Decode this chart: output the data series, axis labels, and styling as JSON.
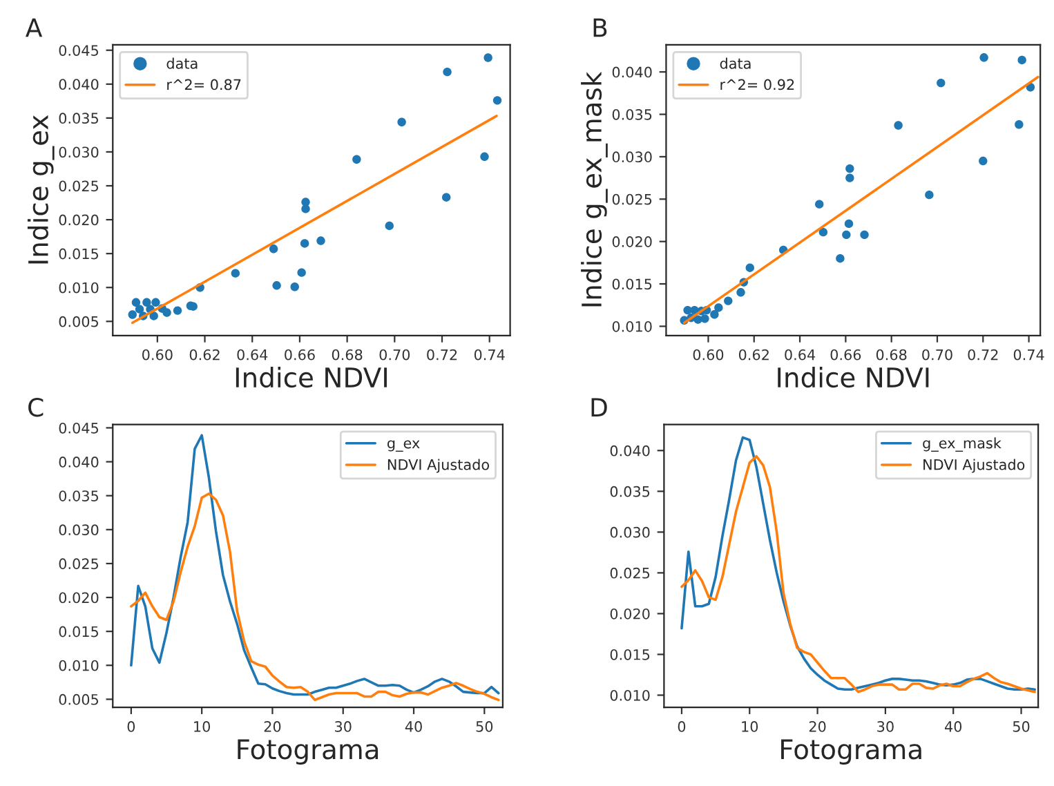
{
  "chart_data": [
    {
      "type": "scatter",
      "title": "A",
      "xlabel": "Indice NDVI",
      "ylabel": "Indice g_ex",
      "legend": "top left",
      "grid": false,
      "xlim": [
        0.5812,
        0.7487
      ],
      "ylim": [
        0.0029,
        0.0458
      ],
      "xticks": [
        {
          "value": 0.6,
          "label": "0.60"
        },
        {
          "value": 0.62,
          "label": "0.62"
        },
        {
          "value": 0.64,
          "label": "0.64"
        },
        {
          "value": 0.66,
          "label": "0.66"
        },
        {
          "value": 0.68,
          "label": "0.68"
        },
        {
          "value": 0.7,
          "label": "0.70"
        },
        {
          "value": 0.72,
          "label": "0.72"
        },
        {
          "value": 0.74,
          "label": "0.74"
        }
      ],
      "yticks": [
        {
          "value": 0.005,
          "label": "0.005"
        },
        {
          "value": 0.01,
          "label": "0.010"
        },
        {
          "value": 0.015,
          "label": "0.015"
        },
        {
          "value": 0.02,
          "label": "0.020"
        },
        {
          "value": 0.025,
          "label": "0.025"
        },
        {
          "value": 0.03,
          "label": "0.030"
        },
        {
          "value": 0.035,
          "label": "0.035"
        },
        {
          "value": 0.04,
          "label": "0.040"
        },
        {
          "value": 0.045,
          "label": "0.045"
        }
      ],
      "series": [
        {
          "name": "data",
          "type": "scatter",
          "color": "#1f77b4",
          "marker": "circle",
          "x": [
            0.7394,
            0.7222,
            0.7433,
            0.703,
            0.684,
            0.7379,
            0.7218,
            0.6625,
            0.6625,
            0.6978,
            0.6689,
            0.6621,
            0.649,
            0.6608,
            0.6329,
            0.6503,
            0.6579,
            0.618,
            0.614,
            0.6151,
            0.6085,
            0.604,
            0.602,
            0.5895,
            0.591,
            0.5925,
            0.594,
            0.5955,
            0.597,
            0.5985,
            0.5993
          ],
          "values": [
            0.0439,
            0.0418,
            0.0376,
            0.0344,
            0.0289,
            0.0293,
            0.0233,
            0.0226,
            0.0216,
            0.0191,
            0.0169,
            0.0165,
            0.0157,
            0.0122,
            0.0121,
            0.0103,
            0.0101,
            0.01,
            0.0073,
            0.0072,
            0.0066,
            0.0063,
            0.0069,
            0.006,
            0.0078,
            0.0068,
            0.0058,
            0.0078,
            0.0068,
            0.0058,
            0.0078
          ]
        },
        {
          "name": "r^2= 0.87",
          "type": "line",
          "color": "#ff7f0e",
          "marker": "none",
          "x": [
            0.5895,
            0.743
          ],
          "values": [
            0.0048,
            0.0353
          ]
        }
      ]
    },
    {
      "type": "scatter",
      "title": "B",
      "xlabel": "Indice NDVI",
      "ylabel": "Indice g_ex_mask",
      "legend": "top left",
      "grid": false,
      "xlim": [
        0.5816,
        0.745
      ],
      "ylim": [
        0.0089,
        0.0432
      ],
      "xticks": [
        {
          "value": 0.6,
          "label": "0.60"
        },
        {
          "value": 0.62,
          "label": "0.62"
        },
        {
          "value": 0.64,
          "label": "0.64"
        },
        {
          "value": 0.66,
          "label": "0.66"
        },
        {
          "value": 0.68,
          "label": "0.68"
        },
        {
          "value": 0.7,
          "label": "0.70"
        },
        {
          "value": 0.72,
          "label": "0.72"
        },
        {
          "value": 0.74,
          "label": "0.74"
        }
      ],
      "yticks": [
        {
          "value": 0.01,
          "label": "0.010"
        },
        {
          "value": 0.015,
          "label": "0.015"
        },
        {
          "value": 0.02,
          "label": "0.020"
        },
        {
          "value": 0.025,
          "label": "0.025"
        },
        {
          "value": 0.03,
          "label": "0.030"
        },
        {
          "value": 0.035,
          "label": "0.035"
        },
        {
          "value": 0.04,
          "label": "0.040"
        }
      ],
      "series": [
        {
          "name": "data",
          "type": "scatter",
          "color": "#1f77b4",
          "marker": "circle",
          "x": [
            0.7204,
            0.737,
            0.7407,
            0.7016,
            0.683,
            0.7357,
            0.72,
            0.6965,
            0.6618,
            0.6618,
            0.6485,
            0.6502,
            0.6614,
            0.6603,
            0.6682,
            0.6576,
            0.6328,
            0.6182,
            0.6155,
            0.6142,
            0.6087,
            0.6045,
            0.6027,
            0.5895,
            0.591,
            0.5925,
            0.594,
            0.5955,
            0.597,
            0.5985,
            0.5993
          ],
          "values": [
            0.0417,
            0.0414,
            0.0382,
            0.0387,
            0.0337,
            0.0338,
            0.0295,
            0.0255,
            0.0286,
            0.0275,
            0.0244,
            0.0211,
            0.0221,
            0.0208,
            0.0208,
            0.018,
            0.019,
            0.0169,
            0.0152,
            0.014,
            0.013,
            0.0122,
            0.0114,
            0.0107,
            0.0119,
            0.011,
            0.0119,
            0.0108,
            0.0118,
            0.0109,
            0.0119
          ]
        },
        {
          "name": "r^2= 0.92",
          "type": "line",
          "color": "#ff7f0e",
          "marker": "none",
          "x": [
            0.5895,
            0.744
          ],
          "values": [
            0.0104,
            0.0394
          ]
        }
      ]
    },
    {
      "type": "line",
      "title": "C",
      "xlabel": "Fotograma",
      "legend": "top right",
      "grid": false,
      "xlim": [
        -2.6,
        52.6
      ],
      "ylim": [
        0.0038,
        0.0455
      ],
      "xticks": [
        0,
        10,
        20,
        30,
        40,
        50
      ],
      "yticks": [
        {
          "value": 0.005,
          "label": "0.005"
        },
        {
          "value": 0.01,
          "label": "0.010"
        },
        {
          "value": 0.015,
          "label": "0.015"
        },
        {
          "value": 0.02,
          "label": "0.020"
        },
        {
          "value": 0.025,
          "label": "0.025"
        },
        {
          "value": 0.03,
          "label": "0.030"
        },
        {
          "value": 0.035,
          "label": "0.035"
        },
        {
          "value": 0.04,
          "label": "0.040"
        },
        {
          "value": 0.045,
          "label": "0.045"
        }
      ],
      "x": [
        0,
        1,
        2,
        3,
        4,
        5,
        6,
        7,
        8,
        9,
        10,
        11,
        12,
        13,
        14,
        15,
        16,
        17,
        18,
        19,
        20,
        21,
        22,
        23,
        24,
        25,
        26,
        27,
        28,
        29,
        30,
        31,
        32,
        33,
        34,
        35,
        36,
        37,
        38,
        39,
        40,
        41,
        42,
        43,
        44,
        45,
        46,
        47,
        48,
        49,
        50,
        51,
        52
      ],
      "series": [
        {
          "name": "g_ex",
          "color": "#1f77b4",
          "values": [
            0.01,
            0.0217,
            0.0187,
            0.0125,
            0.0104,
            0.0148,
            0.02,
            0.0259,
            0.0311,
            0.0419,
            0.0439,
            0.0377,
            0.0298,
            0.0233,
            0.0194,
            0.0161,
            0.0122,
            0.0097,
            0.0073,
            0.0072,
            0.0066,
            0.0062,
            0.0059,
            0.0057,
            0.0057,
            0.0057,
            0.0061,
            0.0064,
            0.0067,
            0.0067,
            0.007,
            0.0073,
            0.0077,
            0.008,
            0.0075,
            0.007,
            0.007,
            0.0071,
            0.007,
            0.0064,
            0.006,
            0.0064,
            0.0069,
            0.0076,
            0.008,
            0.0076,
            0.0069,
            0.0061,
            0.006,
            0.0059,
            0.0059,
            0.0068,
            0.0059
          ]
        },
        {
          "name": "NDVI Ajustado",
          "color": "#ff7f0e",
          "values": [
            0.0187,
            0.0195,
            0.0207,
            0.0187,
            0.0171,
            0.0167,
            0.0194,
            0.0237,
            0.0275,
            0.0305,
            0.0347,
            0.0353,
            0.0344,
            0.0321,
            0.0267,
            0.018,
            0.0135,
            0.0106,
            0.0101,
            0.0098,
            0.0085,
            0.0076,
            0.0068,
            0.0067,
            0.0068,
            0.0061,
            0.0049,
            0.0053,
            0.0057,
            0.0059,
            0.0059,
            0.0059,
            0.0059,
            0.0054,
            0.0054,
            0.0061,
            0.0061,
            0.0056,
            0.0054,
            0.0058,
            0.006,
            0.006,
            0.0057,
            0.0062,
            0.0067,
            0.007,
            0.0074,
            0.007,
            0.0065,
            0.0061,
            0.0058,
            0.0053,
            0.0049
          ]
        }
      ]
    },
    {
      "type": "line",
      "title": "D",
      "xlabel": "Fotograma",
      "legend": "top right",
      "grid": false,
      "xlim": [
        -2.6,
        52.5
      ],
      "ylim": [
        0.0085,
        0.0432
      ],
      "xticks": [
        0,
        10,
        20,
        30,
        40,
        50
      ],
      "yticks": [
        {
          "value": 0.01,
          "label": "0.010"
        },
        {
          "value": 0.015,
          "label": "0.015"
        },
        {
          "value": 0.02,
          "label": "0.020"
        },
        {
          "value": 0.025,
          "label": "0.025"
        },
        {
          "value": 0.03,
          "label": "0.030"
        },
        {
          "value": 0.035,
          "label": "0.035"
        },
        {
          "value": 0.04,
          "label": "0.040"
        }
      ],
      "x": [
        0,
        1,
        2,
        3,
        4,
        5,
        6,
        7,
        8,
        9,
        10,
        11,
        12,
        13,
        14,
        15,
        16,
        17,
        18,
        19,
        20,
        21,
        22,
        23,
        24,
        25,
        26,
        27,
        28,
        29,
        30,
        31,
        32,
        33,
        34,
        35,
        36,
        37,
        38,
        39,
        40,
        41,
        42,
        43,
        44,
        45,
        46,
        47,
        48,
        49,
        50,
        51,
        52
      ],
      "series": [
        {
          "name": "g_ex_mask",
          "color": "#1f77b4",
          "values": [
            0.0182,
            0.0276,
            0.0209,
            0.0209,
            0.0212,
            0.0245,
            0.0295,
            0.034,
            0.0388,
            0.0416,
            0.0413,
            0.038,
            0.0335,
            0.029,
            0.025,
            0.0215,
            0.0185,
            0.016,
            0.0145,
            0.0133,
            0.0125,
            0.0118,
            0.0113,
            0.0108,
            0.0107,
            0.0107,
            0.0109,
            0.0111,
            0.0113,
            0.0115,
            0.0118,
            0.012,
            0.012,
            0.0119,
            0.0118,
            0.0118,
            0.0117,
            0.0115,
            0.0113,
            0.0112,
            0.0113,
            0.0115,
            0.0119,
            0.012,
            0.012,
            0.0117,
            0.0114,
            0.0111,
            0.0108,
            0.0107,
            0.0107,
            0.0108,
            0.0107
          ]
        },
        {
          "name": "NDVI Ajustado",
          "color": "#ff7f0e",
          "values": [
            0.0233,
            0.0241,
            0.0253,
            0.024,
            0.022,
            0.0217,
            0.0245,
            0.0285,
            0.0325,
            0.0355,
            0.0385,
            0.0393,
            0.0382,
            0.0355,
            0.03,
            0.0225,
            0.0187,
            0.0158,
            0.0153,
            0.015,
            0.014,
            0.013,
            0.0121,
            0.0121,
            0.0121,
            0.0113,
            0.0104,
            0.0107,
            0.0111,
            0.0113,
            0.0113,
            0.0113,
            0.0107,
            0.0107,
            0.0114,
            0.0114,
            0.0109,
            0.0108,
            0.0112,
            0.0114,
            0.0111,
            0.0111,
            0.0116,
            0.012,
            0.0123,
            0.0127,
            0.0121,
            0.0116,
            0.0114,
            0.0111,
            0.0108,
            0.0106,
            0.0104
          ]
        }
      ]
    }
  ]
}
